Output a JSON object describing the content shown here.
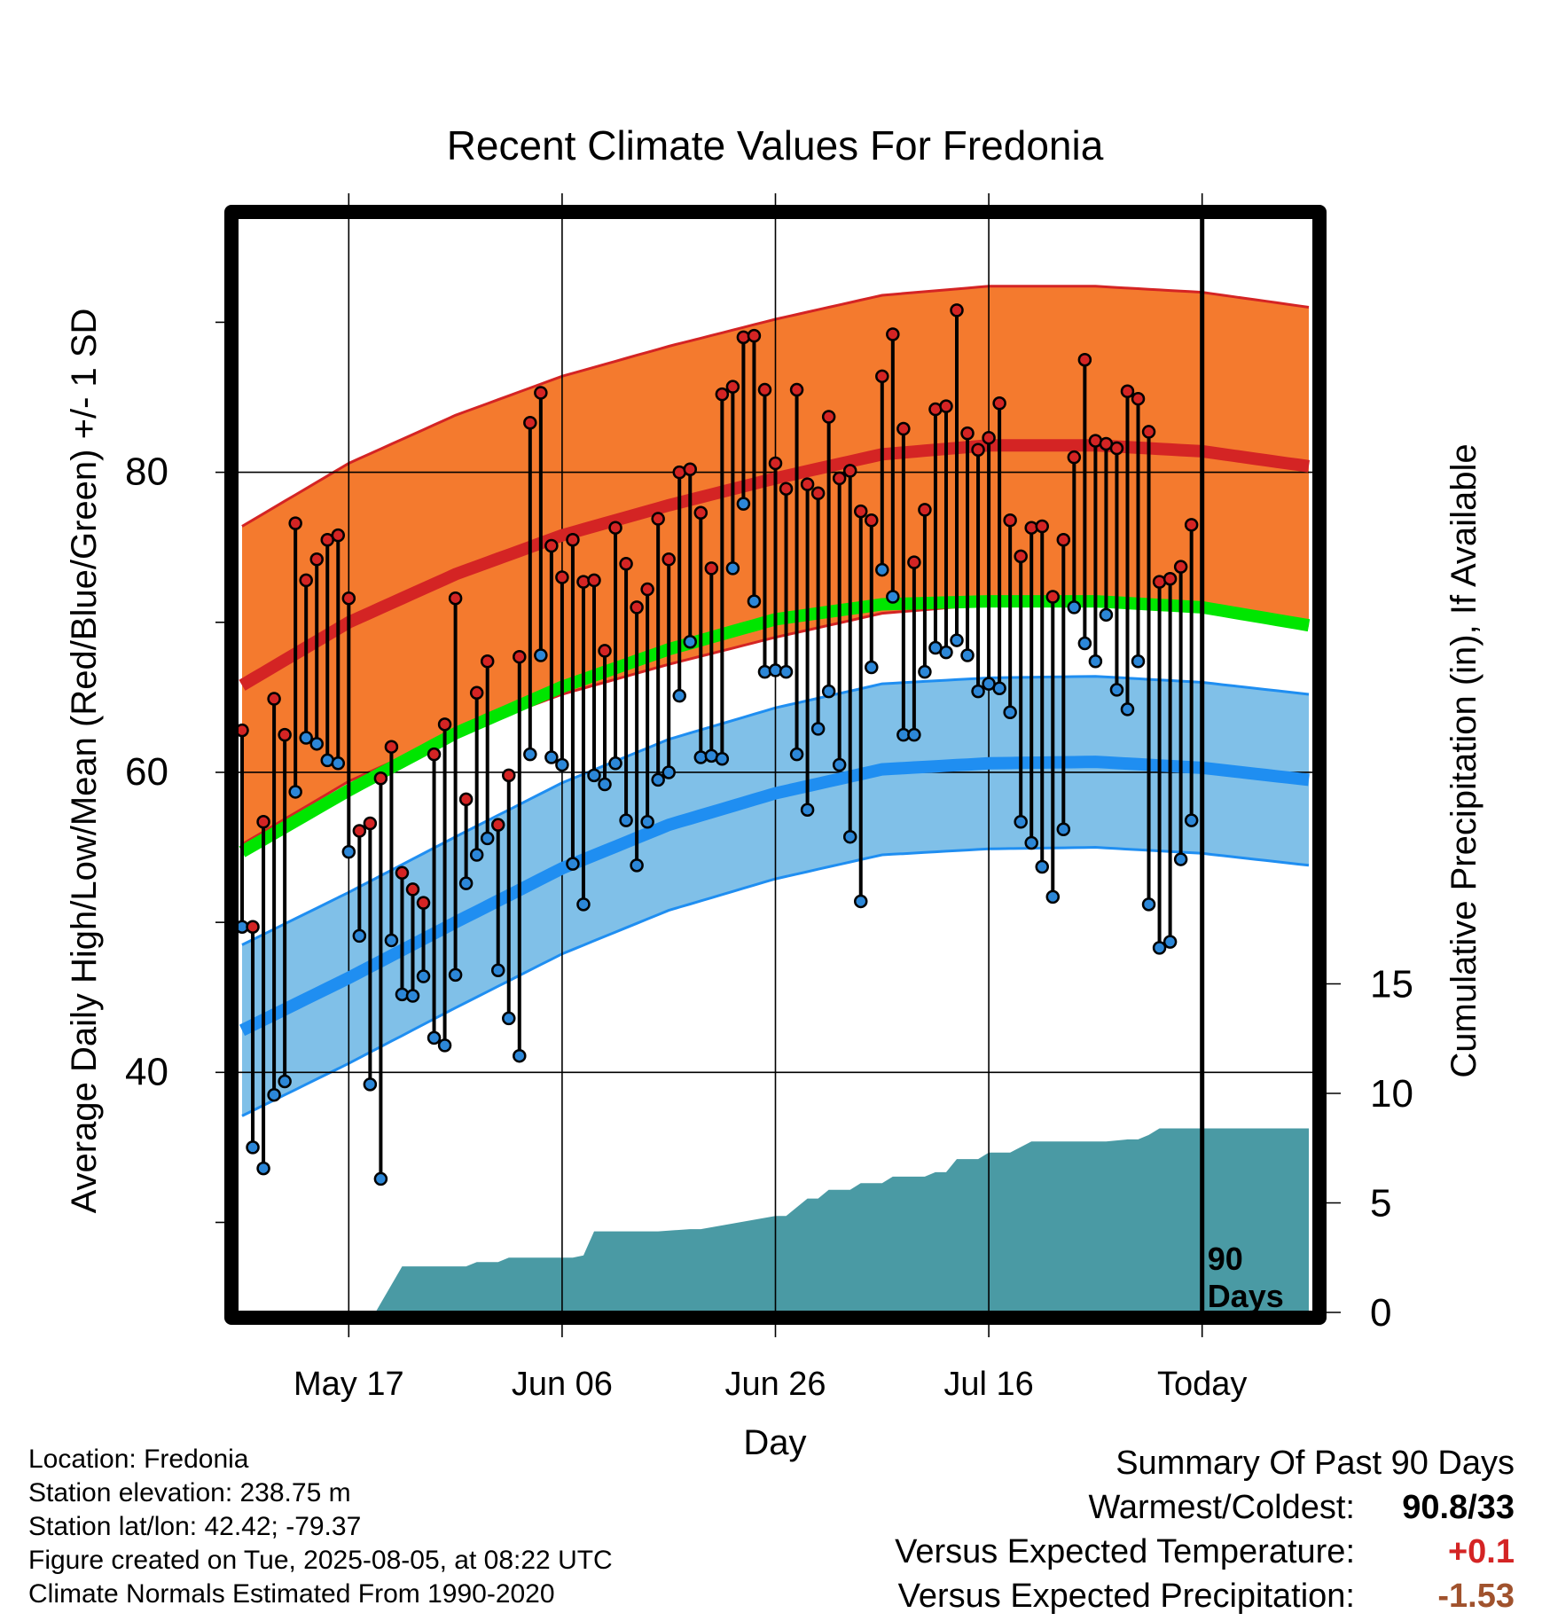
{
  "chart_data": {
    "type": "line",
    "title": "Recent Climate Values For Fredonia",
    "xlabel": "Day",
    "ylabel": "Average Daily High/Low/Mean (Red/Blue/Green) +/- 1 SD",
    "y2label": "Cumulative Precipitation (in), If Available",
    "x_tick_labels": [
      "May 17",
      "Jun 06",
      "Jun 26",
      "Jul 16",
      "Today"
    ],
    "x_tick_days": [
      10,
      30,
      50,
      70,
      90
    ],
    "xlim": [
      -0.5,
      100.5
    ],
    "ylim": [
      24,
      97
    ],
    "y_ticks": [
      40,
      60,
      80
    ],
    "y2lim": [
      0,
      50
    ],
    "y2_ticks": [
      0,
      5,
      10,
      15
    ],
    "grid": true,
    "today_marker": {
      "day": 90,
      "label_line1": "90",
      "label_line2": "Days"
    },
    "colors": {
      "high_band": "#f47a2e",
      "high_mean": "#d42424",
      "high_band_edge": "#d42424",
      "mean_line": "#00e600",
      "low_band": "#80c0e8",
      "low_mean": "#1f8ef1",
      "low_band_edge": "#1f8ef1",
      "precip": "#4a9aa4",
      "high_point": "#d42424",
      "low_point": "#2c87d8"
    },
    "normal_days": [
      0,
      10,
      20,
      30,
      40,
      50,
      60,
      70,
      80,
      90,
      100
    ],
    "normal_high": [
      65.8,
      70.0,
      73.2,
      75.8,
      77.8,
      79.6,
      81.2,
      81.8,
      81.8,
      81.4,
      80.4
    ],
    "normal_high_sd": 10.6,
    "normal_mean": [
      54.7,
      58.8,
      62.6,
      65.7,
      68.2,
      70.2,
      71.2,
      71.4,
      71.4,
      71.0,
      69.8
    ],
    "normal_low": [
      42.8,
      46.3,
      50.0,
      53.6,
      56.5,
      58.6,
      60.2,
      60.6,
      60.7,
      60.3,
      59.5
    ],
    "normal_low_sd": 5.7,
    "precip_days": [
      0,
      12.5,
      15,
      21,
      22,
      24,
      25,
      31,
      32,
      33,
      39,
      42,
      43,
      50,
      51,
      53,
      54,
      55,
      57,
      58,
      60,
      61,
      64,
      65,
      66,
      67,
      69,
      70,
      72,
      74,
      76,
      81,
      83,
      84,
      85,
      86,
      87,
      100
    ],
    "precip_cum": [
      0,
      0,
      2.1,
      2.1,
      2.3,
      2.3,
      2.5,
      2.5,
      2.6,
      3.7,
      3.7,
      3.8,
      3.8,
      4.4,
      4.4,
      5.2,
      5.2,
      5.6,
      5.6,
      5.9,
      5.9,
      6.2,
      6.2,
      6.4,
      6.4,
      7.0,
      7.0,
      7.3,
      7.3,
      7.8,
      7.8,
      7.8,
      7.9,
      7.9,
      8.1,
      8.4,
      8.4,
      8.4
    ],
    "days": [
      0,
      1,
      2,
      3,
      4,
      5,
      6,
      7,
      8,
      9,
      10,
      11,
      12,
      13,
      14,
      15,
      16,
      17,
      18,
      19,
      20,
      21,
      22,
      23,
      24,
      25,
      26,
      27,
      28,
      29,
      30,
      31,
      32,
      33,
      34,
      35,
      36,
      37,
      38,
      39,
      40,
      41,
      42,
      43,
      44,
      45,
      46,
      47,
      48,
      49,
      50,
      51,
      52,
      53,
      54,
      55,
      56,
      57,
      58,
      59,
      60,
      61,
      62,
      63,
      64,
      65,
      66,
      67,
      68,
      69,
      70,
      71,
      72,
      73,
      74,
      75,
      76,
      77,
      78,
      79,
      80,
      81,
      82,
      83,
      84,
      85,
      86,
      87,
      88,
      89
    ],
    "highs": [
      62.8,
      49.7,
      56.7,
      64.9,
      62.5,
      76.6,
      72.8,
      74.2,
      75.5,
      75.8,
      71.6,
      56.1,
      56.6,
      59.6,
      61.7,
      53.3,
      52.2,
      51.3,
      61.2,
      63.2,
      71.6,
      58.2,
      65.3,
      67.4,
      56.5,
      59.8,
      67.7,
      83.3,
      85.3,
      75.1,
      73.0,
      75.5,
      72.7,
      72.8,
      68.1,
      76.3,
      73.9,
      71.0,
      72.2,
      76.9,
      74.2,
      80.0,
      80.2,
      77.3,
      73.6,
      85.2,
      85.7,
      89.0,
      89.1,
      85.5,
      80.6,
      78.9,
      85.5,
      79.2,
      78.6,
      83.7,
      79.6,
      80.1,
      77.4,
      76.8,
      86.4,
      89.2,
      82.9,
      74.0,
      77.5,
      84.2,
      84.4,
      90.8,
      82.6,
      81.5,
      82.3,
      84.6,
      76.8,
      74.4,
      76.3,
      76.4,
      71.7,
      75.5,
      81.0,
      87.5,
      82.1,
      81.9,
      81.6,
      85.4,
      84.9,
      82.7,
      72.7,
      72.9,
      73.7,
      76.5
    ],
    "lows": [
      49.7,
      35.0,
      33.6,
      38.5,
      39.4,
      58.7,
      62.3,
      61.9,
      60.8,
      60.6,
      54.7,
      49.1,
      39.2,
      32.9,
      48.8,
      45.2,
      45.1,
      46.4,
      42.3,
      41.8,
      46.5,
      52.6,
      54.5,
      55.6,
      46.8,
      43.6,
      41.1,
      61.2,
      67.8,
      61.0,
      60.5,
      53.9,
      51.2,
      59.8,
      59.2,
      60.6,
      56.8,
      53.8,
      56.7,
      59.5,
      60.0,
      65.1,
      68.7,
      61.0,
      61.1,
      60.9,
      73.6,
      77.9,
      71.4,
      66.7,
      66.8,
      66.7,
      61.2,
      57.5,
      62.9,
      65.4,
      60.5,
      55.7,
      51.4,
      67.0,
      73.5,
      71.7,
      62.5,
      62.5,
      66.7,
      68.3,
      68.0,
      68.8,
      67.8,
      65.4,
      65.9,
      65.6,
      64.0,
      56.7,
      55.3,
      53.7,
      51.7,
      56.2,
      71.0,
      68.6,
      67.4,
      70.5,
      65.5,
      64.2,
      67.4,
      51.2,
      48.3,
      48.7,
      54.2,
      56.8
    ]
  },
  "footer": {
    "location": "Location: Fredonia",
    "elevation": "Station elevation: 238.75 m",
    "latlon": "Station lat/lon: 42.42; -79.37",
    "created": "Figure created on Tue, 2025-08-05, at 08:22 UTC",
    "normals": "Climate Normals Estimated From 1990-2020"
  },
  "summary": {
    "title": "Summary Of Past 90 Days",
    "warmest_coldest_label": "Warmest/Coldest:",
    "warmest_coldest_value": "90.8/33",
    "temp_label": "Versus Expected Temperature:",
    "temp_value": "+0.1",
    "temp_color": "#d42424",
    "precip_label": "Versus Expected Precipitation:",
    "precip_value": "-1.53",
    "precip_color": "#a0522d"
  }
}
